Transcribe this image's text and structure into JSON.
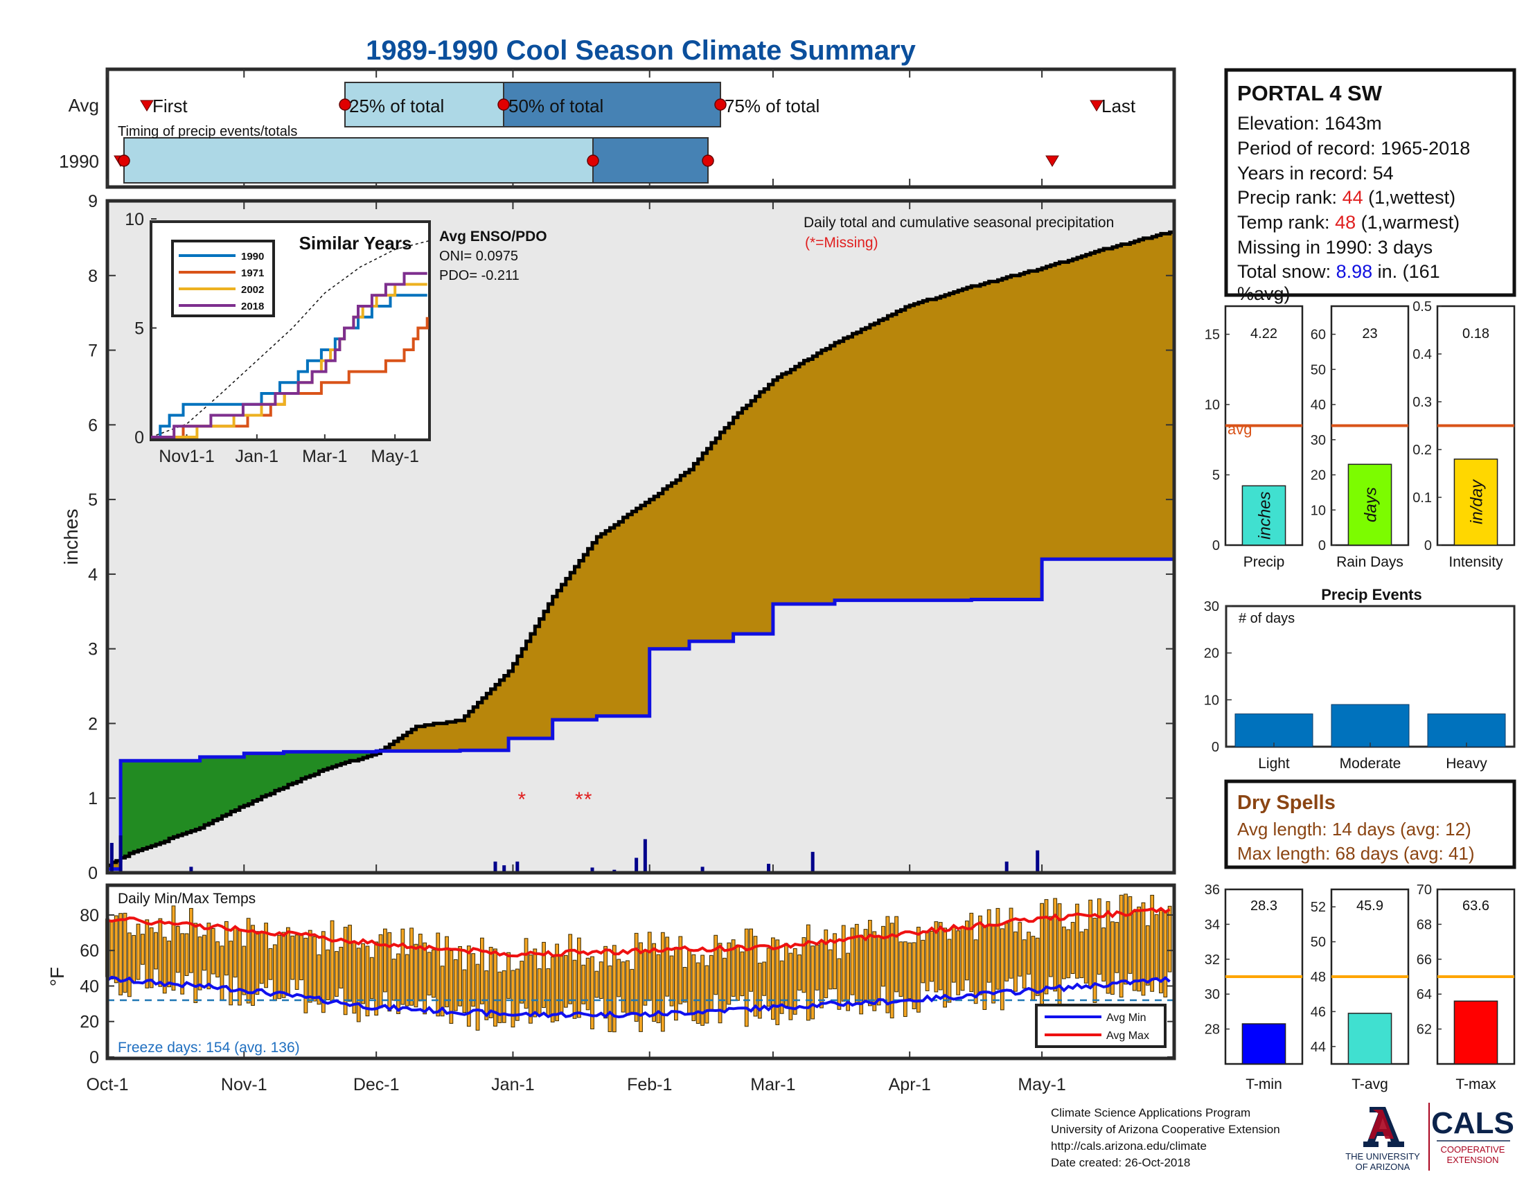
{
  "page": {
    "title": "1989-1990 Cool Season Climate Summary",
    "title_color": "#0b4f9c"
  },
  "timing": {
    "row_avg": "Avg",
    "row_year": "1990",
    "caption": "Timing of precip events/totals",
    "first": "First",
    "last": "Last",
    "p25": "25% of total",
    "p50": "50% of total",
    "p75": "75% of total"
  },
  "station": {
    "name": "PORTAL 4 SW",
    "elevation": "Elevation: 1643m",
    "period": "Period of record: 1965-2018",
    "years": "Years in record: 54",
    "precip_rank_label": "Precip rank: ",
    "precip_rank": "44",
    "precip_rank_note": " (1,wettest)",
    "temp_rank_label": "Temp rank: ",
    "temp_rank": "48",
    "temp_rank_note": " (1,warmest)",
    "missing": "Missing in 1990: 3 days",
    "snow_label": "Total snow: ",
    "snow_value": "8.98",
    "snow_note1": " in. (161",
    "snow_note2": "%avg)"
  },
  "main": {
    "ylabel": "inches",
    "yticks": [
      "0",
      "1",
      "2",
      "3",
      "4",
      "5",
      "6",
      "7",
      "8",
      "9"
    ],
    "xticks": [
      "Oct-1",
      "Nov-1",
      "Dec-1",
      "Jan-1",
      "Feb-1",
      "Mar-1",
      "Apr-1",
      "May-1"
    ],
    "legend_title": "Daily total and cumulative seasonal precipitation",
    "legend_missing": "(*=Missing)",
    "missing_marker": "*",
    "colors": {
      "surplus": "#b8860b",
      "deficit": "#228b22",
      "fill_below": "#e8e8e8",
      "avg": "#1010e0",
      "cum": "#000000",
      "daily": "#00008b",
      "missing": "#e02020"
    }
  },
  "inset": {
    "title": "Similar Years",
    "yticks": [
      "0",
      "5",
      "10"
    ],
    "xticks": [
      "Nov1-1",
      "Jan-1",
      "Mar-1",
      "May-1"
    ],
    "legend": [
      {
        "label": "1990",
        "color": "#0072bd"
      },
      {
        "label": "1971",
        "color": "#d95319"
      },
      {
        "label": "2002",
        "color": "#edb120"
      },
      {
        "label": "2018",
        "color": "#7e2f8e"
      }
    ],
    "enso_title": "Avg ENSO/PDO",
    "oni": "ONI= 0.0975",
    "pdo": "PDO= -0.211"
  },
  "bars_top": {
    "avg_label": "avg",
    "panels": [
      {
        "value": "4.22",
        "label": "Precip",
        "unit": "inches",
        "color": "#40e0d0",
        "yticks": [
          "0",
          "5",
          "10",
          "15"
        ],
        "max": 17,
        "v": 4.22,
        "avg": 8.5
      },
      {
        "value": "23",
        "label": "Rain Days",
        "unit": "days",
        "color": "#7cfc00",
        "yticks": [
          "0",
          "10",
          "20",
          "30",
          "40",
          "50",
          "60"
        ],
        "max": 68,
        "v": 23,
        "avg": 34
      },
      {
        "value": "0.18",
        "label": "Intensity",
        "unit": "in/day",
        "color": "#ffd700",
        "yticks": [
          "0",
          "0.1",
          "0.2",
          "0.3",
          "0.4",
          "0.5"
        ],
        "max": 0.5,
        "v": 0.18,
        "avg": 0.25
      }
    ]
  },
  "events": {
    "title": "Precip Events",
    "ylabel": "# of days",
    "yticks": [
      "0",
      "10",
      "20",
      "30"
    ],
    "categories": [
      "Light",
      "Moderate",
      "Heavy"
    ],
    "values": [
      7,
      9,
      7
    ],
    "color": "#0072bd"
  },
  "dry": {
    "title": "Dry Spells",
    "avg_line": "Avg length: 14 days (avg: 12)",
    "max_line": "Max length: 68 days (avg: 41)",
    "color": "#8b4513"
  },
  "temps": {
    "title": "Daily Min/Max Temps",
    "ylabel": "°F",
    "yticks": [
      "0",
      "20",
      "40",
      "60",
      "80"
    ],
    "freeze": "Freeze days: 154 (avg. 136)",
    "legend_min": "Avg Min",
    "legend_max": "Avg Max"
  },
  "temp_bars": {
    "panels": [
      {
        "value": "28.3",
        "label": "T-min",
        "color": "#0000ff",
        "yticks": [
          "28",
          "30",
          "32",
          "34",
          "36"
        ],
        "min": 26,
        "max": 36,
        "v": 28.3,
        "avg": 31
      },
      {
        "value": "45.9",
        "label": "T-avg",
        "color": "#40e0d0",
        "yticks": [
          "44",
          "46",
          "48",
          "50",
          "52"
        ],
        "min": 43,
        "max": 53,
        "v": 45.9,
        "avg": 48
      },
      {
        "value": "63.6",
        "label": "T-max",
        "color": "#ff0000",
        "yticks": [
          "62",
          "64",
          "66",
          "68",
          "70"
        ],
        "min": 60,
        "max": 70,
        "v": 63.6,
        "avg": 65
      }
    ]
  },
  "footer": {
    "line1": "Climate Science Applications Program",
    "line2": "University of Arizona Cooperative Extension",
    "line3": "http://cals.arizona.edu/climate",
    "line4": " Date created: 26-Oct-2018",
    "ua1": "THE UNIVERSITY",
    "ua2": "OF ARIZONA",
    "cals": "CALS",
    "cals1": "COOPERATIVE",
    "cals2": "EXTENSION"
  },
  "chart_data": [
    {
      "type": "area",
      "title": "Daily total and cumulative seasonal precipitation",
      "ylabel": "inches",
      "ylim": [
        0,
        9
      ],
      "x_dates": [
        "10-01",
        "10-04",
        "10-08",
        "10-15",
        "10-22",
        "11-01",
        "11-10",
        "11-20",
        "12-01",
        "12-05",
        "12-10",
        "12-20",
        "12-31",
        "01-10",
        "01-20",
        "02-01",
        "02-10",
        "02-20",
        "03-01",
        "03-15",
        "04-01",
        "04-15",
        "05-01",
        "05-15",
        "05-31"
      ],
      "series": [
        {
          "name": "1990",
          "values": [
            0.1,
            0.2,
            0.3,
            0.45,
            0.6,
            0.9,
            1.15,
            1.4,
            1.6,
            1.75,
            1.95,
            2.05,
            2.7,
            3.7,
            4.5,
            5.0,
            5.4,
            6.1,
            6.6,
            7.1,
            7.6,
            7.85,
            8.1,
            8.35,
            8.6
          ]
        },
        {
          "name": "Avg",
          "values": [
            0.05,
            1.5,
            1.5,
            1.5,
            1.55,
            1.6,
            1.62,
            1.62,
            1.63,
            1.63,
            1.63,
            1.64,
            1.8,
            2.05,
            2.1,
            3.0,
            3.1,
            3.2,
            3.6,
            3.65,
            3.65,
            3.66,
            4.2,
            4.2,
            4.2
          ]
        }
      ],
      "missing_days": [
        "01-03",
        "01-16",
        "01-18"
      ],
      "daily_precip": [
        {
          "date": "10-02",
          "value": 0.4
        },
        {
          "date": "10-04",
          "value": 0.5
        },
        {
          "date": "10-20",
          "value": 0.08
        },
        {
          "date": "12-28",
          "value": 0.15
        },
        {
          "date": "12-30",
          "value": 0.1
        },
        {
          "date": "01-02",
          "value": 0.15
        },
        {
          "date": "01-19",
          "value": 0.07
        },
        {
          "date": "01-24",
          "value": 0.04
        },
        {
          "date": "01-29",
          "value": 0.2
        },
        {
          "date": "01-31",
          "value": 0.45
        },
        {
          "date": "02-13",
          "value": 0.08
        },
        {
          "date": "02-28",
          "value": 0.12
        },
        {
          "date": "03-10",
          "value": 0.28
        },
        {
          "date": "04-23",
          "value": 0.15
        },
        {
          "date": "04-30",
          "value": 0.3
        }
      ]
    },
    {
      "type": "line",
      "title": "Similar Years",
      "ylim": [
        0,
        10
      ],
      "x": [
        "10-01",
        "11-01",
        "12-01",
        "01-01",
        "02-01",
        "03-01",
        "04-01",
        "05-01",
        "05-31"
      ],
      "series": [
        {
          "name": "1990",
          "values": [
            0,
            1.5,
            1.6,
            1.65,
            2.7,
            4.0,
            5.5,
            6.5,
            6.6
          ]
        },
        {
          "name": "1971",
          "values": [
            0,
            0.3,
            0.5,
            0.9,
            2.0,
            2.3,
            3.0,
            3.4,
            5.5
          ]
        },
        {
          "name": "2002",
          "values": [
            0,
            0.1,
            0.6,
            1.2,
            2.0,
            3.5,
            5.8,
            6.8,
            7.1
          ]
        },
        {
          "name": "2018",
          "values": [
            0,
            0.4,
            0.9,
            1.5,
            2.1,
            3.3,
            6.0,
            7.2,
            7.4
          ]
        },
        {
          "values": [
            0,
            0.6,
            2.0,
            3.5,
            5.0,
            6.6,
            7.8,
            8.6,
            9.0
          ]
        }
      ]
    },
    {
      "type": "bar",
      "categories": [
        "Precip",
        "Rain Days",
        "Intensity"
      ],
      "series": [
        {
          "values": [
            4.22,
            23,
            0.18
          ]
        },
        {
          "name": "avg",
          "values": [
            8.5,
            34,
            0.25
          ]
        }
      ]
    },
    {
      "type": "bar",
      "title": "Precip Events",
      "ylabel": "# of days",
      "categories": [
        "Light",
        "Moderate",
        "Heavy"
      ],
      "values": [
        7,
        9,
        7
      ],
      "ylim": [
        0,
        30
      ]
    },
    {
      "type": "bar",
      "title": "Daily Min/Max Temps",
      "ylabel": "°F",
      "ylim": [
        -5,
        90
      ],
      "x": [
        "10-01",
        "11-01",
        "12-01",
        "01-01",
        "02-01",
        "03-01",
        "04-01",
        "05-01",
        "05-31"
      ],
      "series": [
        {
          "name": "Avg Max",
          "values": [
            78,
            72,
            64,
            58,
            60,
            62,
            70,
            78,
            83
          ]
        },
        {
          "name": "Avg Min",
          "values": [
            44,
            38,
            28,
            24,
            24,
            28,
            32,
            38,
            44
          ]
        }
      ]
    },
    {
      "type": "bar",
      "categories": [
        "T-min",
        "T-avg",
        "T-max"
      ],
      "series": [
        {
          "values": [
            28.3,
            45.9,
            63.6
          ]
        },
        {
          "name": "avg",
          "values": [
            31,
            48,
            65
          ]
        }
      ]
    }
  ]
}
